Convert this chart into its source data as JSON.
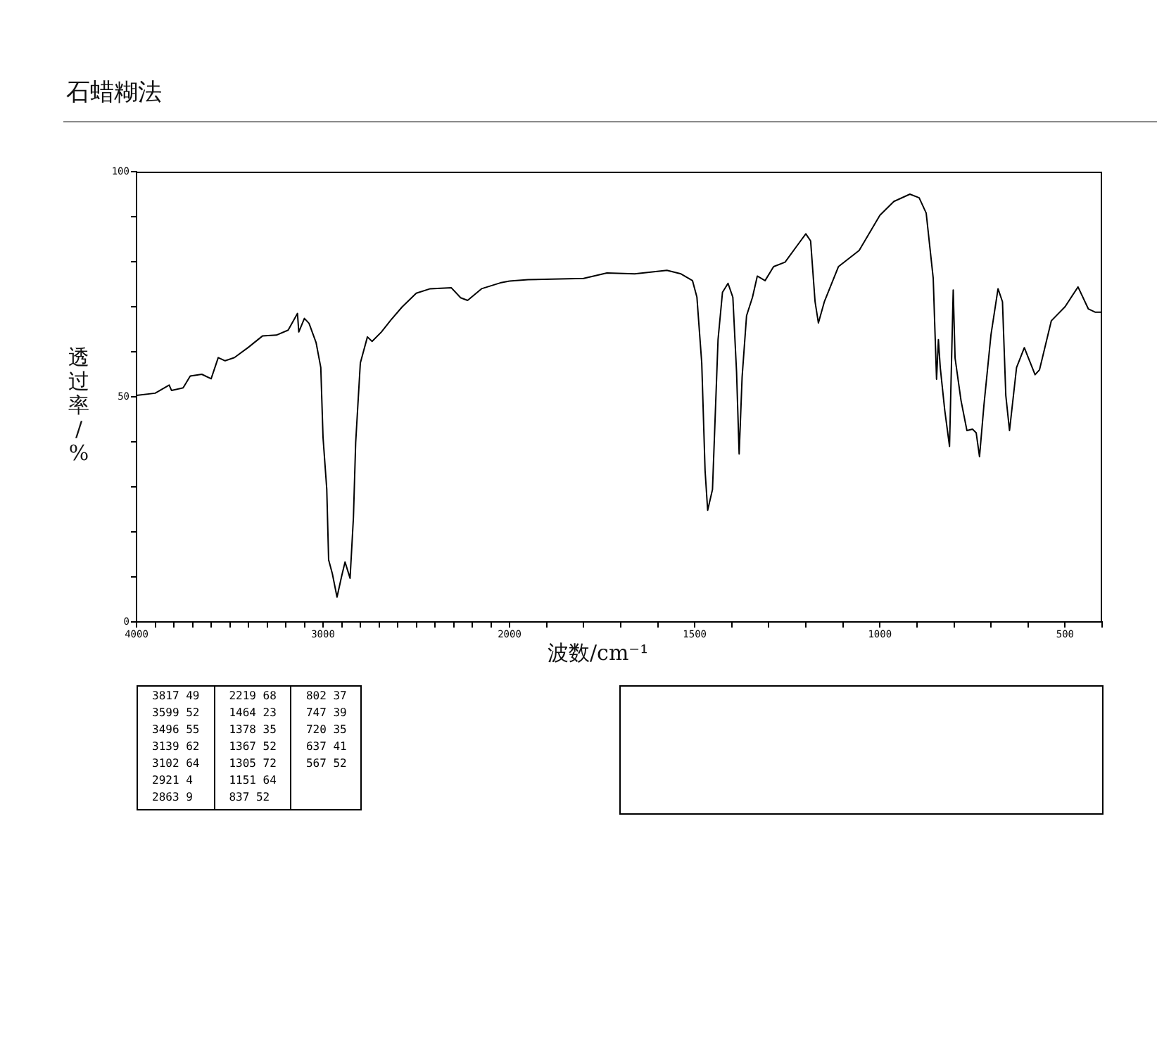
{
  "chart_data": [
    {
      "type": "line",
      "title": "石蜡糊法",
      "xlabel": "波数/cm⁻¹",
      "ylabel": "透过率/%",
      "x": [
        4000,
        3900,
        3825,
        3812,
        3750,
        3712,
        3650,
        3600,
        3562,
        3525,
        3475,
        3400,
        3325,
        3250,
        3187,
        3137,
        3130,
        3100,
        3075,
        3037,
        3012,
        3000,
        2980,
        2970,
        2950,
        2925,
        2900,
        2882,
        2855,
        2837,
        2825,
        2800,
        2762,
        2737,
        2687,
        2637,
        2575,
        2500,
        2425,
        2312,
        2262,
        2225,
        2150,
        2050,
        2000
      ],
      "series": [
        {
          "color": "#000000",
          "values": [
            50.3,
            50.8,
            52.6,
            51.4,
            52,
            54.6,
            55,
            54,
            58.7,
            58,
            58.7,
            61,
            63.5,
            63.7,
            64.8,
            68.5,
            64.4,
            67.4,
            66.3,
            62,
            56.5,
            41,
            29.5,
            13.8,
            10.7,
            5.5,
            10.2,
            13.3,
            9.7,
            23.2,
            39.8,
            57.5,
            63.3,
            62.3,
            64.4,
            67,
            70,
            73,
            74,
            74.2,
            72,
            71.4,
            74,
            75.3,
            75.7
          ]
        }
      ],
      "xlim": [
        4000,
        2000
      ],
      "xticks": [
        4000,
        {
          "value": 3900,
          "label": null
        },
        {
          "value": 3800,
          "label": null
        },
        {
          "value": 3700,
          "label": null
        },
        {
          "value": 3600,
          "label": null
        },
        {
          "value": 3500,
          "label": null
        },
        {
          "value": 3400,
          "label": null
        },
        {
          "value": 3300,
          "label": null
        },
        {
          "value": 3200,
          "label": null
        },
        {
          "value": 3100,
          "label": null
        },
        3000,
        {
          "value": 2900,
          "label": null
        },
        {
          "value": 2800,
          "label": null
        },
        {
          "value": 2700,
          "label": null
        },
        {
          "value": 2600,
          "label": null
        },
        {
          "value": 2500,
          "label": null
        },
        {
          "value": 2400,
          "label": null
        },
        {
          "value": 2300,
          "label": null
        },
        {
          "value": 2200,
          "label": null
        },
        {
          "value": 2100,
          "label": null
        },
        2000
      ],
      "ylim": [
        0,
        100
      ],
      "yticks": [
        0,
        {
          "value": 10,
          "label": null
        },
        {
          "value": 20,
          "label": null
        },
        {
          "value": 30,
          "label": null
        },
        {
          "value": 40,
          "label": null
        },
        50,
        {
          "value": 60,
          "label": null
        },
        {
          "value": 70,
          "label": null
        },
        {
          "value": 80,
          "label": null
        },
        {
          "value": 90,
          "label": null
        },
        100
      ],
      "annotations": [
        "3817 49",
        "3599 52",
        "3496 55",
        "3139 62",
        "3102 64",
        "2921 4",
        "2863 9",
        "2219 68",
        "1464 23",
        "1378 35",
        "1367 52",
        "1305 72",
        "1151 64",
        "837 52",
        "802 37",
        "747 39",
        "720 35",
        "637 41",
        "567 52"
      ]
    },
    {
      "type": "line",
      "x": [
        2000,
        1950,
        1800,
        1737,
        1662,
        1575,
        1537,
        1506,
        1494,
        1481,
        1472,
        1465,
        1452,
        1437,
        1425,
        1410,
        1397,
        1387,
        1380,
        1372,
        1360,
        1344,
        1331,
        1310,
        1287,
        1256,
        1225,
        1200,
        1187,
        1175,
        1166,
        1150,
        1112,
        1056,
        1000,
        962,
        919,
        894,
        875,
        856,
        847,
        842,
        837,
        825,
        812,
        802,
        797,
        781,
        765,
        750,
        740,
        731,
        719,
        700,
        681,
        669,
        660,
        650,
        631,
        610,
        581,
        569,
        537,
        500,
        465,
        437,
        419,
        400
      ],
      "series": [
        {
          "color": "#000000",
          "values": [
            75.7,
            76,
            76.3,
            77.5,
            77.3,
            78.1,
            77.3,
            75.8,
            72.1,
            57.5,
            33.6,
            24.8,
            29.4,
            62.7,
            73.2,
            75.2,
            72.1,
            55.5,
            37.3,
            54.4,
            68,
            72.1,
            76.8,
            75.8,
            78.9,
            79.9,
            83.4,
            86.2,
            84.6,
            71.1,
            66.4,
            71.1,
            78.9,
            82.5,
            90.3,
            93.4,
            95,
            94.2,
            90.8,
            76.3,
            53.9,
            62.7,
            56.5,
            47.1,
            39,
            73.7,
            58.6,
            49.2,
            42.5,
            42.8,
            42,
            36.7,
            48.2,
            63.8,
            74,
            71.1,
            50.3,
            42.5,
            56.5,
            60.9,
            54.9,
            56,
            66.9,
            70,
            74.4,
            69.5,
            68.8,
            68.8
          ]
        }
      ],
      "xlim": [
        2000,
        400
      ],
      "xticks": [
        {
          "value": 1900,
          "label": null
        },
        {
          "value": 1800,
          "label": null
        },
        {
          "value": 1700,
          "label": null
        },
        {
          "value": 1600,
          "label": null
        },
        1500,
        {
          "value": 1400,
          "label": null
        },
        {
          "value": 1300,
          "label": null
        },
        {
          "value": 1200,
          "label": null
        },
        {
          "value": 1100,
          "label": null
        },
        1000,
        {
          "value": 900,
          "label": null
        },
        {
          "value": 800,
          "label": null
        },
        {
          "value": 700,
          "label": null
        },
        {
          "value": 600,
          "label": null
        },
        500,
        {
          "value": 400,
          "label": null
        }
      ],
      "ylim": [
        0,
        100
      ],
      "tick_labels": "x"
    }
  ]
}
